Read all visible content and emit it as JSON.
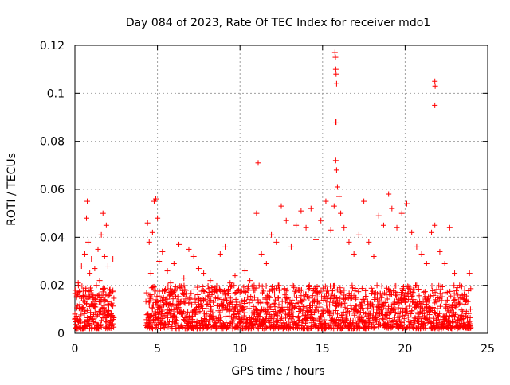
{
  "chart_data": {
    "type": "scatter",
    "title": "Day 084 of 2023, Rate Of TEC Index for receiver mdo1",
    "xlabel": "GPS time / hours",
    "ylabel": "ROTI / TECUs",
    "xlim": [
      0,
      25
    ],
    "ylim": [
      0,
      0.12
    ],
    "xticks": [
      0,
      5,
      10,
      15,
      20,
      25
    ],
    "yticks": [
      0,
      0.02,
      0.04,
      0.06,
      0.08,
      0.1,
      0.12
    ],
    "xtick_labels": [
      "0",
      "5",
      "10",
      "15",
      "20",
      "25"
    ],
    "ytick_labels": [
      "0",
      "0.02",
      "0.04",
      "0.06",
      "0.08",
      "0.1",
      "0.12"
    ],
    "grid": true,
    "marker": "+",
    "color": "#ff0000",
    "series": [
      {
        "points": [
          [
            0.0,
            0.008
          ],
          [
            0.1,
            0.015
          ],
          [
            0.2,
            0.021
          ],
          [
            0.3,
            0.012
          ],
          [
            0.4,
            0.028
          ],
          [
            0.5,
            0.018
          ],
          [
            0.6,
            0.033
          ],
          [
            0.7,
            0.048
          ],
          [
            0.75,
            0.055
          ],
          [
            0.8,
            0.038
          ],
          [
            0.9,
            0.025
          ],
          [
            1.0,
            0.031
          ],
          [
            1.1,
            0.016
          ],
          [
            1.2,
            0.027
          ],
          [
            1.3,
            0.02
          ],
          [
            1.4,
            0.035
          ],
          [
            1.5,
            0.022
          ],
          [
            1.6,
            0.041
          ],
          [
            1.7,
            0.05
          ],
          [
            1.8,
            0.032
          ],
          [
            1.9,
            0.045
          ],
          [
            2.0,
            0.028
          ],
          [
            2.1,
            0.018
          ],
          [
            2.2,
            0.012
          ],
          [
            2.3,
            0.031
          ],
          [
            4.4,
            0.046
          ],
          [
            4.5,
            0.038
          ],
          [
            4.6,
            0.025
          ],
          [
            4.7,
            0.042
          ],
          [
            4.8,
            0.055
          ],
          [
            4.9,
            0.056
          ],
          [
            5.0,
            0.048
          ],
          [
            5.1,
            0.03
          ],
          [
            5.3,
            0.034
          ],
          [
            5.6,
            0.026
          ],
          [
            5.8,
            0.021
          ],
          [
            6.0,
            0.029
          ],
          [
            6.3,
            0.037
          ],
          [
            6.6,
            0.023
          ],
          [
            6.9,
            0.035
          ],
          [
            7.2,
            0.032
          ],
          [
            7.5,
            0.027
          ],
          [
            7.8,
            0.025
          ],
          [
            8.2,
            0.022
          ],
          [
            8.5,
            0.018
          ],
          [
            8.8,
            0.033
          ],
          [
            9.1,
            0.036
          ],
          [
            9.4,
            0.021
          ],
          [
            9.7,
            0.024
          ],
          [
            10.0,
            0.017
          ],
          [
            10.3,
            0.026
          ],
          [
            10.6,
            0.022
          ],
          [
            10.9,
            0.018
          ],
          [
            11.0,
            0.05
          ],
          [
            11.1,
            0.071
          ],
          [
            11.3,
            0.033
          ],
          [
            11.6,
            0.029
          ],
          [
            11.9,
            0.041
          ],
          [
            12.2,
            0.038
          ],
          [
            12.5,
            0.053
          ],
          [
            12.8,
            0.047
          ],
          [
            13.1,
            0.036
          ],
          [
            13.4,
            0.045
          ],
          [
            13.7,
            0.051
          ],
          [
            14.0,
            0.044
          ],
          [
            14.3,
            0.052
          ],
          [
            14.6,
            0.039
          ],
          [
            14.9,
            0.047
          ],
          [
            15.2,
            0.055
          ],
          [
            15.5,
            0.043
          ],
          [
            15.7,
            0.053
          ],
          [
            15.75,
            0.117
          ],
          [
            15.78,
            0.115
          ],
          [
            15.8,
            0.11
          ],
          [
            15.82,
            0.108
          ],
          [
            15.85,
            0.104
          ],
          [
            15.8,
            0.088
          ],
          [
            15.82,
            0.088
          ],
          [
            15.8,
            0.072
          ],
          [
            15.85,
            0.068
          ],
          [
            15.9,
            0.061
          ],
          [
            16.0,
            0.057
          ],
          [
            16.1,
            0.05
          ],
          [
            16.3,
            0.044
          ],
          [
            16.6,
            0.038
          ],
          [
            16.9,
            0.033
          ],
          [
            17.2,
            0.041
          ],
          [
            17.5,
            0.055
          ],
          [
            17.8,
            0.038
          ],
          [
            18.1,
            0.032
          ],
          [
            18.4,
            0.049
          ],
          [
            18.7,
            0.045
          ],
          [
            19.0,
            0.058
          ],
          [
            19.2,
            0.052
          ],
          [
            19.5,
            0.044
          ],
          [
            19.8,
            0.05
          ],
          [
            20.1,
            0.054
          ],
          [
            20.4,
            0.042
          ],
          [
            20.7,
            0.036
          ],
          [
            21.0,
            0.033
          ],
          [
            21.3,
            0.029
          ],
          [
            21.6,
            0.042
          ],
          [
            21.8,
            0.045
          ],
          [
            21.8,
            0.105
          ],
          [
            21.82,
            0.103
          ],
          [
            21.8,
            0.095
          ],
          [
            22.1,
            0.034
          ],
          [
            22.4,
            0.029
          ],
          [
            22.7,
            0.044
          ],
          [
            23.0,
            0.025
          ],
          [
            23.3,
            0.02
          ],
          [
            23.6,
            0.018
          ],
          [
            23.9,
            0.025
          ]
        ]
      }
    ],
    "note_dense_band": {
      "x_ranges": [
        [
          0.0,
          2.35
        ],
        [
          4.3,
          24.0
        ]
      ],
      "y_range": [
        0.002,
        0.02
      ]
    }
  }
}
